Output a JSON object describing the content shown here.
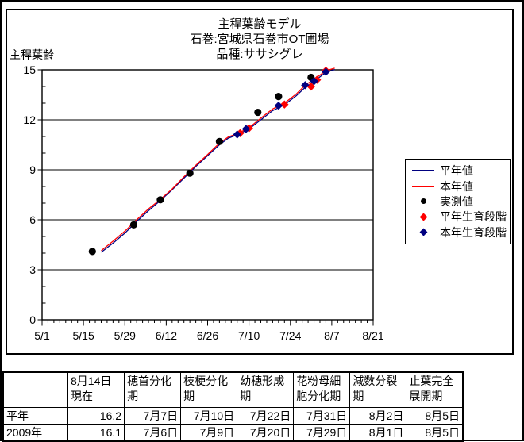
{
  "chart_data": {
    "type": "line",
    "title_lines": [
      "主稈葉齢モデル",
      "石巻:宮城県石巻市OT圃場",
      "品種:ササシグレ"
    ],
    "ylabel": "主稈葉齢",
    "x_axis": {
      "major_ticks": [
        "5/1",
        "5/15",
        "5/29",
        "6/12",
        "6/26",
        "7/10",
        "7/24",
        "8/7",
        "8/21"
      ],
      "minor_step_days": 2,
      "range_days": 112
    },
    "y_axis": {
      "min": 0,
      "max": 15,
      "major_ticks": [
        0,
        3,
        6,
        9,
        12,
        15
      ],
      "minor_step": 1
    },
    "grid": "horizontal-major",
    "legend_position": "right",
    "series": [
      {
        "name": "平年値",
        "kind": "line",
        "color": "#000080",
        "points": [
          [
            "5/21",
            4.05
          ],
          [
            "5/25",
            4.6
          ],
          [
            "5/29",
            5.2
          ],
          [
            "6/2",
            5.9
          ],
          [
            "6/6",
            6.55
          ],
          [
            "6/10",
            7.15
          ],
          [
            "6/14",
            7.8
          ],
          [
            "6/18",
            8.5
          ],
          [
            "6/22",
            9.2
          ],
          [
            "6/26",
            9.85
          ],
          [
            "6/30",
            10.5
          ],
          [
            "7/3",
            10.9
          ],
          [
            "7/6",
            11.1
          ],
          [
            "7/10",
            11.45
          ],
          [
            "7/14",
            12.0
          ],
          [
            "7/18",
            12.55
          ],
          [
            "7/22",
            12.9
          ],
          [
            "7/26",
            13.45
          ],
          [
            "7/29",
            13.95
          ],
          [
            "8/2",
            14.45
          ],
          [
            "8/5",
            14.85
          ],
          [
            "8/8",
            15.02
          ]
        ]
      },
      {
        "name": "本年値",
        "kind": "line",
        "color": "#FF0000",
        "points": [
          [
            "5/21",
            4.15
          ],
          [
            "5/25",
            4.72
          ],
          [
            "5/29",
            5.32
          ],
          [
            "6/2",
            6.0
          ],
          [
            "6/6",
            6.65
          ],
          [
            "6/10",
            7.22
          ],
          [
            "6/14",
            7.85
          ],
          [
            "6/18",
            8.58
          ],
          [
            "6/22",
            9.27
          ],
          [
            "6/26",
            9.92
          ],
          [
            "6/30",
            10.6
          ],
          [
            "7/3",
            10.97
          ],
          [
            "7/6",
            11.17
          ],
          [
            "7/10",
            11.52
          ],
          [
            "7/14",
            12.1
          ],
          [
            "7/18",
            12.65
          ],
          [
            "7/22",
            13.0
          ],
          [
            "7/26",
            13.55
          ],
          [
            "7/29",
            14.08
          ],
          [
            "8/2",
            14.55
          ],
          [
            "8/5",
            14.95
          ],
          [
            "8/8",
            15.1
          ]
        ]
      },
      {
        "name": "実測値",
        "kind": "scatter",
        "marker": "circle",
        "color": "#000000",
        "points": [
          [
            "5/18",
            4.1
          ],
          [
            "6/1",
            5.7
          ],
          [
            "6/10",
            7.2
          ],
          [
            "6/20",
            8.8
          ],
          [
            "6/30",
            10.7
          ],
          [
            "7/13",
            12.45
          ],
          [
            "7/20",
            13.4
          ],
          [
            "7/31",
            14.55
          ]
        ]
      },
      {
        "name": "平年生育段階",
        "kind": "scatter",
        "marker": "diamond",
        "color": "#FF0000",
        "points": [
          [
            "7/7",
            11.2
          ],
          [
            "7/10",
            11.5
          ],
          [
            "7/22",
            12.92
          ],
          [
            "7/31",
            14.0
          ],
          [
            "8/2",
            14.4
          ],
          [
            "8/5",
            14.95
          ]
        ]
      },
      {
        "name": "本年生育段階",
        "kind": "scatter",
        "marker": "diamond",
        "color": "#000080",
        "points": [
          [
            "7/6",
            11.12
          ],
          [
            "7/9",
            11.45
          ],
          [
            "7/20",
            12.85
          ],
          [
            "7/29",
            14.08
          ],
          [
            "8/1",
            14.32
          ],
          [
            "8/5",
            14.88
          ]
        ]
      }
    ]
  },
  "table": {
    "corner_blank": "",
    "col_headers": [
      "8月14日\n現在",
      "穂首分化\n期",
      "枝梗分化\n期",
      "幼穂形成\n期",
      "花粉母細\n胞分化期",
      "減数分裂\n期",
      "止葉完全\n展開期"
    ],
    "rows": [
      {
        "label": "平年",
        "values": [
          "16.2",
          "7月7日",
          "7月10日",
          "7月22日",
          "7月31日",
          "8月2日",
          "8月5日"
        ]
      },
      {
        "label": "2009年",
        "values": [
          "16.1",
          "7月6日",
          "7月9日",
          "7月20日",
          "7月29日",
          "8月1日",
          "8月5日"
        ]
      }
    ]
  },
  "colors": {
    "normal_year": "#000080",
    "this_year": "#FF0000",
    "measured": "#000000",
    "axis": "#000000",
    "background": "#FFFFFF"
  }
}
